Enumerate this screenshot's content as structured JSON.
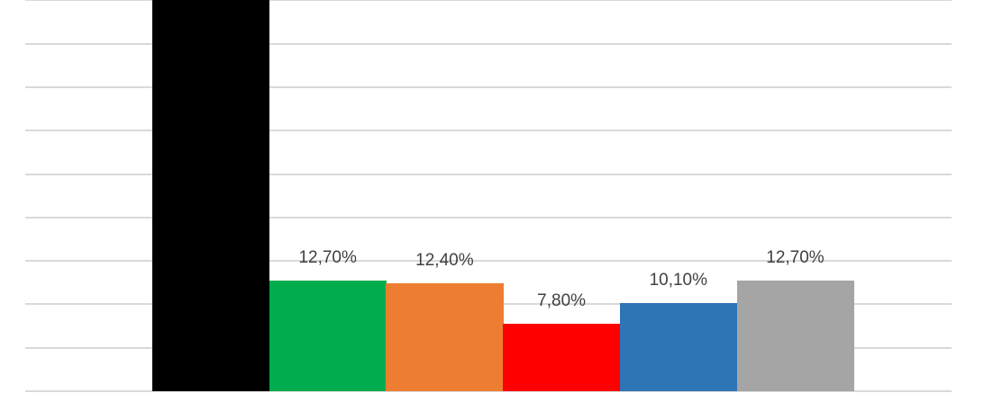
{
  "chart_data": {
    "type": "bar",
    "title": "",
    "xlabel": "",
    "ylabel": "",
    "categories": [
      "",
      "",
      "",
      "",
      "",
      ""
    ],
    "values": [
      null,
      12.7,
      12.4,
      7.8,
      10.1,
      12.7
    ],
    "data_labels": [
      "",
      "12,70%",
      "12,40%",
      "7,80%",
      "10,10%",
      "12,70%"
    ],
    "colors": [
      "#000000",
      "#00ad4e",
      "#ed7d31",
      "#ff0000",
      "#2e75b6",
      "#a5a5a5"
    ],
    "notes": "First (black) bar extends beyond the visible top of the plot (>45%); its label is cropped out.",
    "ylim": [
      0,
      45
    ],
    "y_grid_step": 5,
    "grid": true,
    "legend": "none",
    "unit": "%"
  }
}
